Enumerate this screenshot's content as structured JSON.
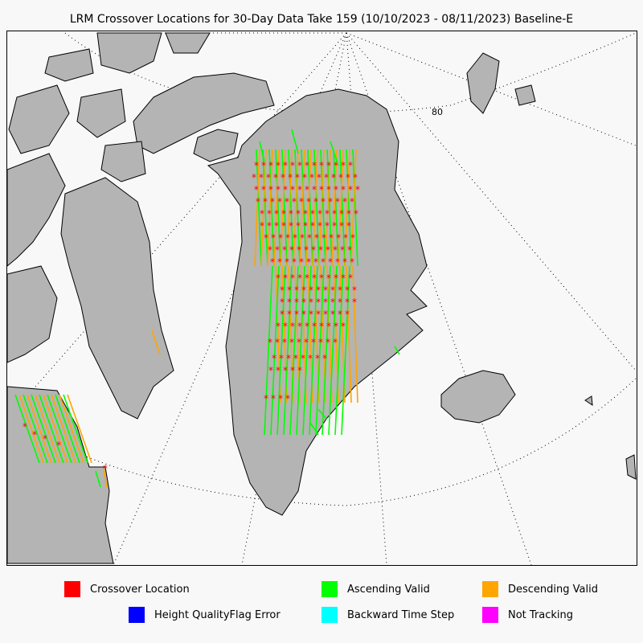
{
  "title": "LRM Crossover Locations for 30-Day Data Take 159 (10/10/2023 - 08/11/2023) Baseline-E",
  "map": {
    "latitude_label": "80",
    "colors": {
      "land": "#b4b4b4",
      "ocean": "#f8f8f8",
      "coast": "#000000",
      "crossover": "#ff0000",
      "ascending": "#00ff00",
      "descending": "#ffa500",
      "height_error": "#0000ff",
      "backward": "#00ffff",
      "not_tracking": "#ff00ff"
    }
  },
  "legend": {
    "items": [
      {
        "label": "Crossover Location",
        "color": "#ff0000"
      },
      {
        "label": "Ascending Valid",
        "color": "#00ff00"
      },
      {
        "label": "Descending Valid",
        "color": "#ffa500"
      },
      {
        "label": "Height QualityFlag Error",
        "color": "#0000ff"
      },
      {
        "label": "Backward Time Step",
        "color": "#00ffff"
      },
      {
        "label": "Not Tracking",
        "color": "#ff00ff"
      }
    ]
  }
}
